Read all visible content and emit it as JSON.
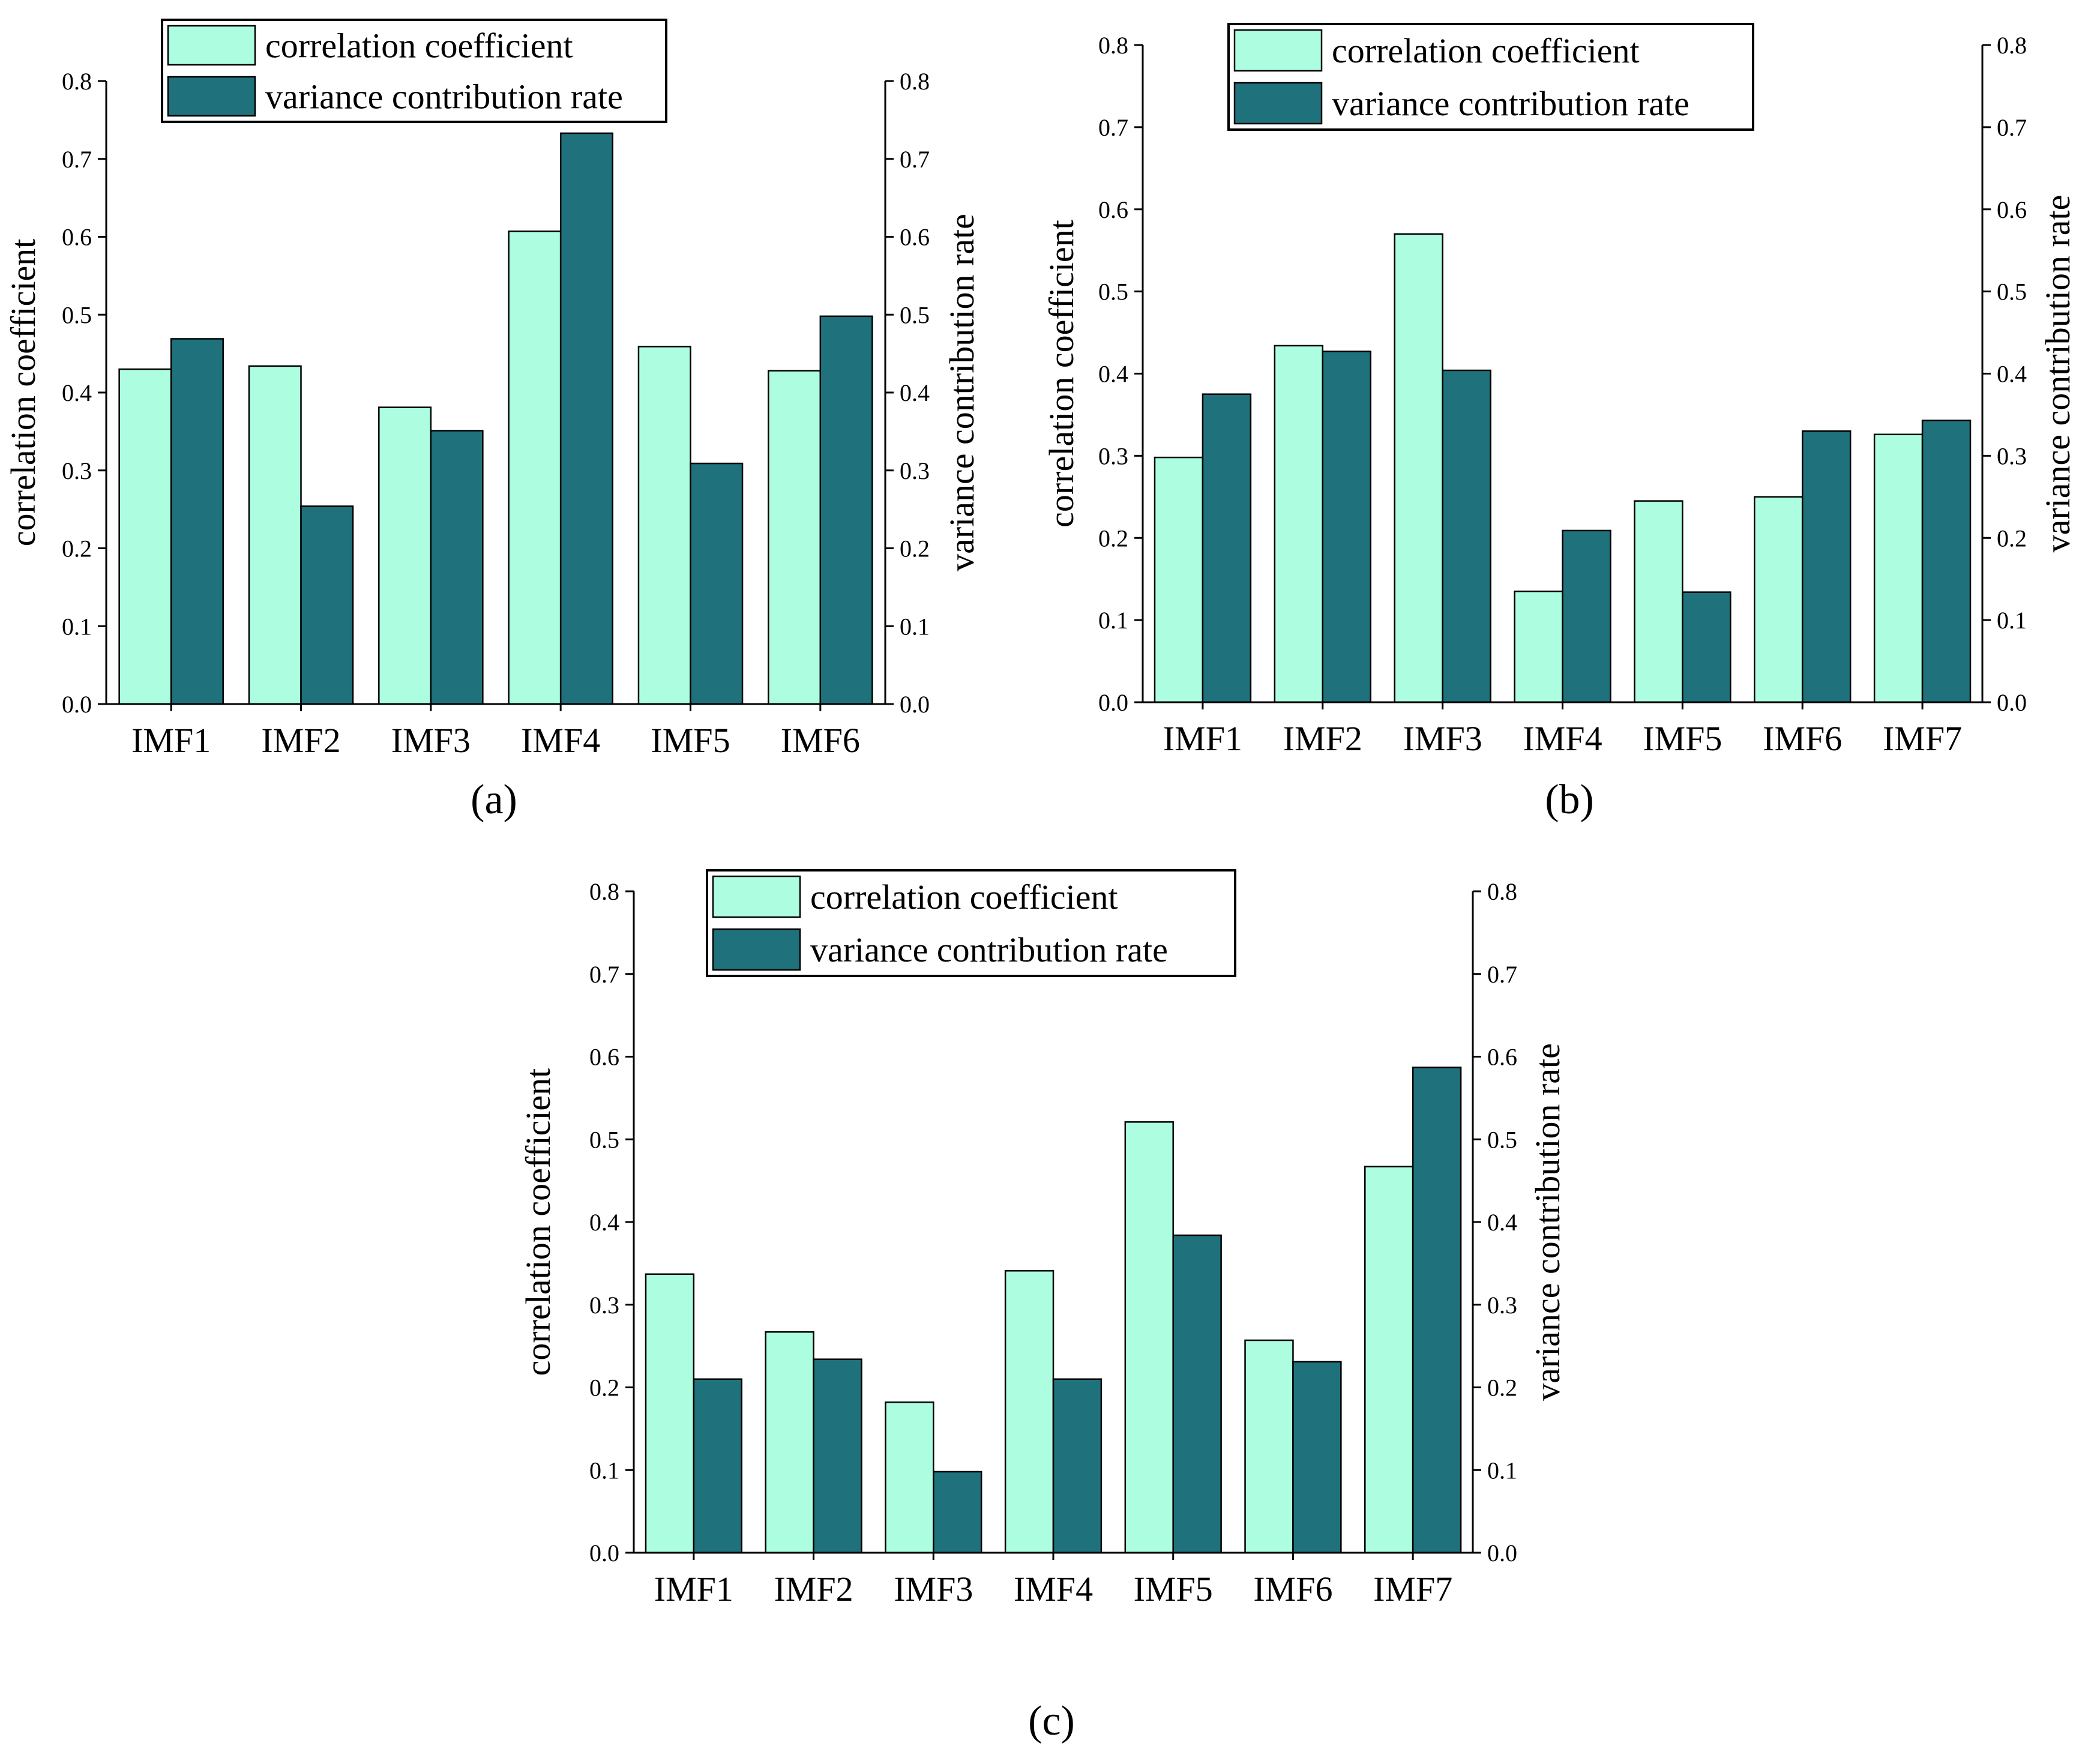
{
  "colors": {
    "correlation": "#adfde1",
    "variance": "#1f717c",
    "stroke": "#000000"
  },
  "panel_labels": [
    "(a)",
    "(b)",
    "(c)"
  ],
  "chart_data": [
    {
      "type": "bar",
      "panel": "(a)",
      "categories": [
        "IMF1",
        "IMF2",
        "IMF3",
        "IMF4",
        "IMF5",
        "IMF6"
      ],
      "series": [
        {
          "name": "correlation coefficient",
          "axis": "left",
          "values": [
            0.43,
            0.434,
            0.381,
            0.607,
            0.459,
            0.428
          ]
        },
        {
          "name": "variance contribution rate",
          "axis": "right",
          "values": [
            0.469,
            0.254,
            0.351,
            0.733,
            0.309,
            0.498
          ]
        }
      ],
      "ylabel": "correlation coefficient",
      "y2label": "variance contribution rate",
      "ylim": [
        0,
        0.8
      ],
      "y2lim": [
        0,
        0.8
      ],
      "yticks": [
        "0.0",
        "0.1",
        "0.2",
        "0.3",
        "0.4",
        "0.5",
        "0.6",
        "0.7",
        "0.8"
      ],
      "legend": "top-center",
      "grid": false
    },
    {
      "type": "bar",
      "panel": "(b)",
      "categories": [
        "IMF1",
        "IMF2",
        "IMF3",
        "IMF4",
        "IMF5",
        "IMF6",
        "IMF7"
      ],
      "series": [
        {
          "name": "correlation coefficient",
          "axis": "left",
          "values": [
            0.298,
            0.434,
            0.57,
            0.135,
            0.245,
            0.25,
            0.326
          ]
        },
        {
          "name": "variance contribution rate",
          "axis": "right",
          "values": [
            0.375,
            0.427,
            0.404,
            0.209,
            0.134,
            0.33,
            0.343
          ]
        }
      ],
      "ylabel": "correlation coefficient",
      "y2label": "variance contribution rate",
      "ylim": [
        0,
        0.8
      ],
      "y2lim": [
        0,
        0.8
      ],
      "yticks": [
        "0.0",
        "0.1",
        "0.2",
        "0.3",
        "0.4",
        "0.5",
        "0.6",
        "0.7",
        "0.8"
      ],
      "legend": "top-center",
      "grid": false
    },
    {
      "type": "bar",
      "panel": "(c)",
      "categories": [
        "IMF1",
        "IMF2",
        "IMF3",
        "IMF4",
        "IMF5",
        "IMF6",
        "IMF7"
      ],
      "series": [
        {
          "name": "correlation coefficient",
          "axis": "left",
          "values": [
            0.337,
            0.267,
            0.182,
            0.341,
            0.521,
            0.257,
            0.467
          ]
        },
        {
          "name": "variance contribution rate",
          "axis": "right",
          "values": [
            0.21,
            0.234,
            0.098,
            0.21,
            0.384,
            0.231,
            0.587
          ]
        }
      ],
      "ylabel": "correlation coefficient",
      "y2label": "variance contribution rate",
      "ylim": [
        0,
        0.8
      ],
      "y2lim": [
        0,
        0.8
      ],
      "yticks": [
        "0.0",
        "0.1",
        "0.2",
        "0.3",
        "0.4",
        "0.5",
        "0.6",
        "0.7",
        "0.8"
      ],
      "legend": "top-center",
      "grid": false
    }
  ]
}
